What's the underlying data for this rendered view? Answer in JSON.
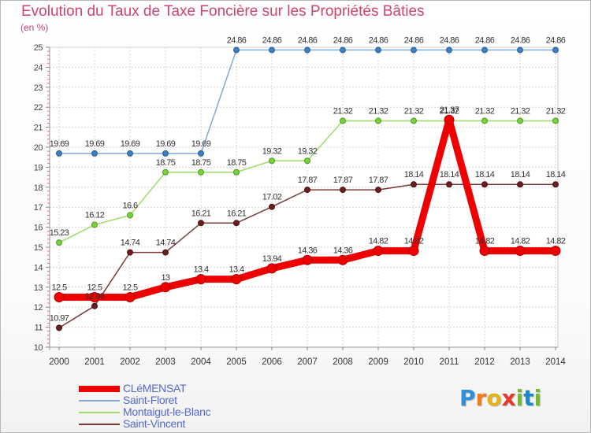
{
  "title": "Evolution du Taux de Taxe Foncière sur les Propriétés Bâties",
  "unit_label": "(en %)",
  "logo": [
    "P",
    "r",
    "o",
    "x",
    "i",
    "t",
    "i"
  ],
  "chart_data": {
    "type": "line",
    "title": "Evolution du Taux de Taxe Foncière sur les Propriétés Bâties",
    "ylabel": "(en %)",
    "xlabel": "",
    "x": [
      2000,
      2001,
      2002,
      2003,
      2004,
      2005,
      2006,
      2007,
      2008,
      2009,
      2010,
      2011,
      2012,
      2013,
      2014
    ],
    "ylim": [
      10,
      25
    ],
    "yticks": [
      10,
      11,
      12,
      13,
      14,
      15,
      16,
      17,
      18,
      19,
      20,
      21,
      22,
      23,
      24,
      25
    ],
    "grid": true,
    "legend_position": "bottom-left",
    "series": [
      {
        "name": "CLéMENSAT",
        "color": "#ee0000",
        "values": [
          12.5,
          12.5,
          12.5,
          13,
          13.4,
          13.4,
          13.94,
          14.36,
          14.36,
          14.82,
          14.82,
          21.37,
          14.82,
          14.82,
          14.82
        ]
      },
      {
        "name": "Saint-Floret",
        "color": "#7fa9d6",
        "values": [
          19.69,
          19.69,
          19.69,
          19.69,
          19.69,
          24.86,
          24.86,
          24.86,
          24.86,
          24.86,
          24.86,
          24.86,
          24.86,
          24.86,
          24.86
        ]
      },
      {
        "name": "Montaigut-le-Blanc",
        "color": "#9edb6b",
        "values": [
          15.23,
          16.12,
          16.6,
          18.75,
          18.75,
          18.75,
          19.32,
          19.32,
          21.32,
          21.32,
          21.32,
          21.32,
          21.32,
          21.32,
          21.32
        ]
      },
      {
        "name": "Saint-Vincent",
        "color": "#7a3a3a",
        "values": [
          10.97,
          12.06,
          14.74,
          14.74,
          16.21,
          16.21,
          17.02,
          17.87,
          17.87,
          17.87,
          18.14,
          18.14,
          18.14,
          18.14,
          18.14
        ]
      }
    ]
  }
}
